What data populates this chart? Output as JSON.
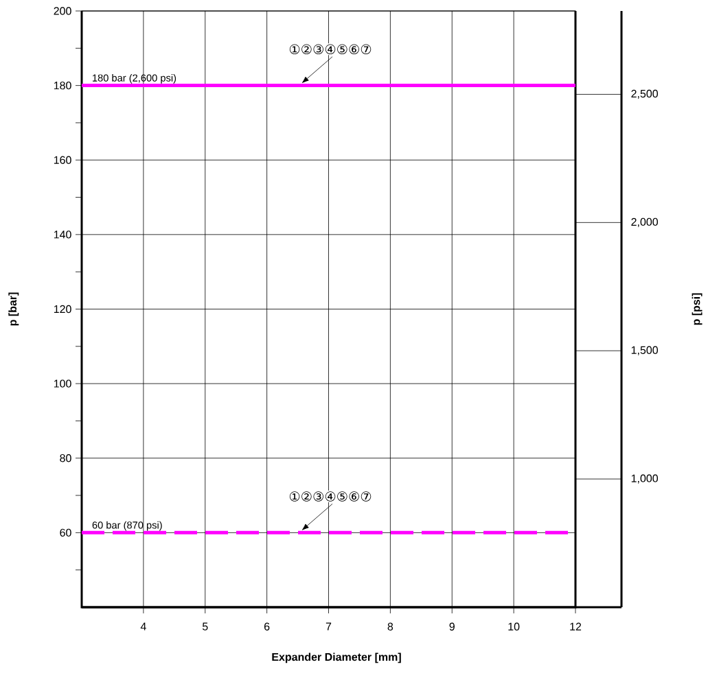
{
  "chart_data": {
    "type": "line",
    "xlabel": "Expander Diameter [mm]",
    "ylabel": "p [bar]",
    "y2label": "p [psi]",
    "categories": [
      "4",
      "5",
      "6",
      "7",
      "8",
      "9",
      "10",
      "12"
    ],
    "ylim": [
      40,
      200
    ],
    "yticks": [
      {
        "value": 50,
        "label": null
      },
      60,
      {
        "value": 70,
        "label": null
      },
      80,
      {
        "value": 90,
        "label": null
      },
      100,
      {
        "value": 110,
        "label": null
      },
      120,
      {
        "value": 130,
        "label": null
      },
      140,
      {
        "value": 150,
        "label": null
      },
      160,
      {
        "value": 170,
        "label": null
      },
      180,
      {
        "value": 190,
        "label": null
      },
      200
    ],
    "y2lim": [
      500,
      2825
    ],
    "y2ticks": [
      {
        "value": 500,
        "label": null
      },
      {
        "value": 1000,
        "label": "1,000"
      },
      {
        "value": 1500,
        "label": "1,500"
      },
      {
        "value": 2000,
        "label": "2,000"
      },
      {
        "value": 2500,
        "label": "2,500"
      }
    ],
    "grid": true,
    "ref_lines": [
      {
        "axis": "y",
        "value": 180,
        "label": "180 bar (2,600 psi)",
        "color": "#ff00ff",
        "line_style": "solid"
      },
      {
        "axis": "y",
        "value": 60,
        "label": "60 bar (870 psi)",
        "color": "#ff00ff",
        "line_style": "dashed"
      }
    ],
    "annotations": [
      {
        "text": "①②③④⑤⑥⑦",
        "y": 180
      },
      {
        "text": "①②③④⑤⑥⑦",
        "y": 60
      }
    ]
  }
}
